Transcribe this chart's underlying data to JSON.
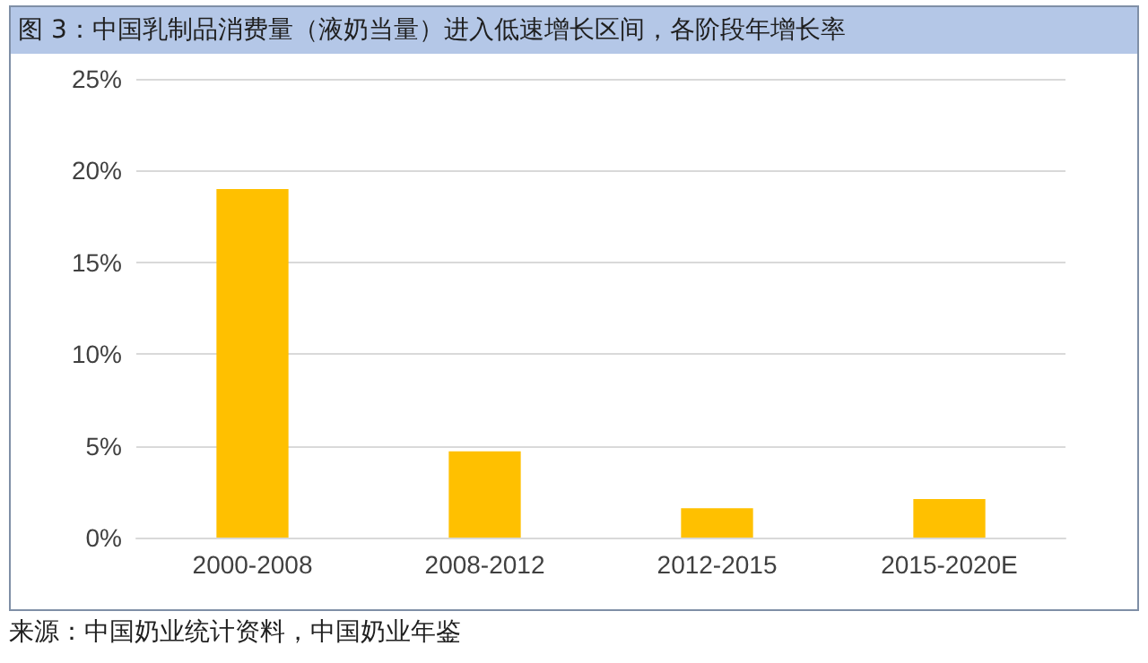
{
  "chart_data": {
    "type": "bar",
    "title": "图 3：中国乳制品消费量（液奶当量）进入低速增长区间，各阶段年增长率",
    "categories": [
      "2000-2008",
      "2008-2012",
      "2012-2015",
      "2015-2020E"
    ],
    "values": [
      19,
      4.7,
      1.6,
      2.1
    ],
    "color": "#ffc000",
    "ylim": [
      0,
      25
    ],
    "yticks": [
      {
        "value": 0,
        "label": "0%"
      },
      {
        "value": 5,
        "label": "5%"
      },
      {
        "value": 10,
        "label": "10%"
      },
      {
        "value": 15,
        "label": "15%"
      },
      {
        "value": 20,
        "label": "20%"
      },
      {
        "value": 25,
        "label": "25%"
      }
    ],
    "grid": "y",
    "annotations": [
      "来源：中国奶业统计资料，中国奶业年鉴"
    ]
  }
}
